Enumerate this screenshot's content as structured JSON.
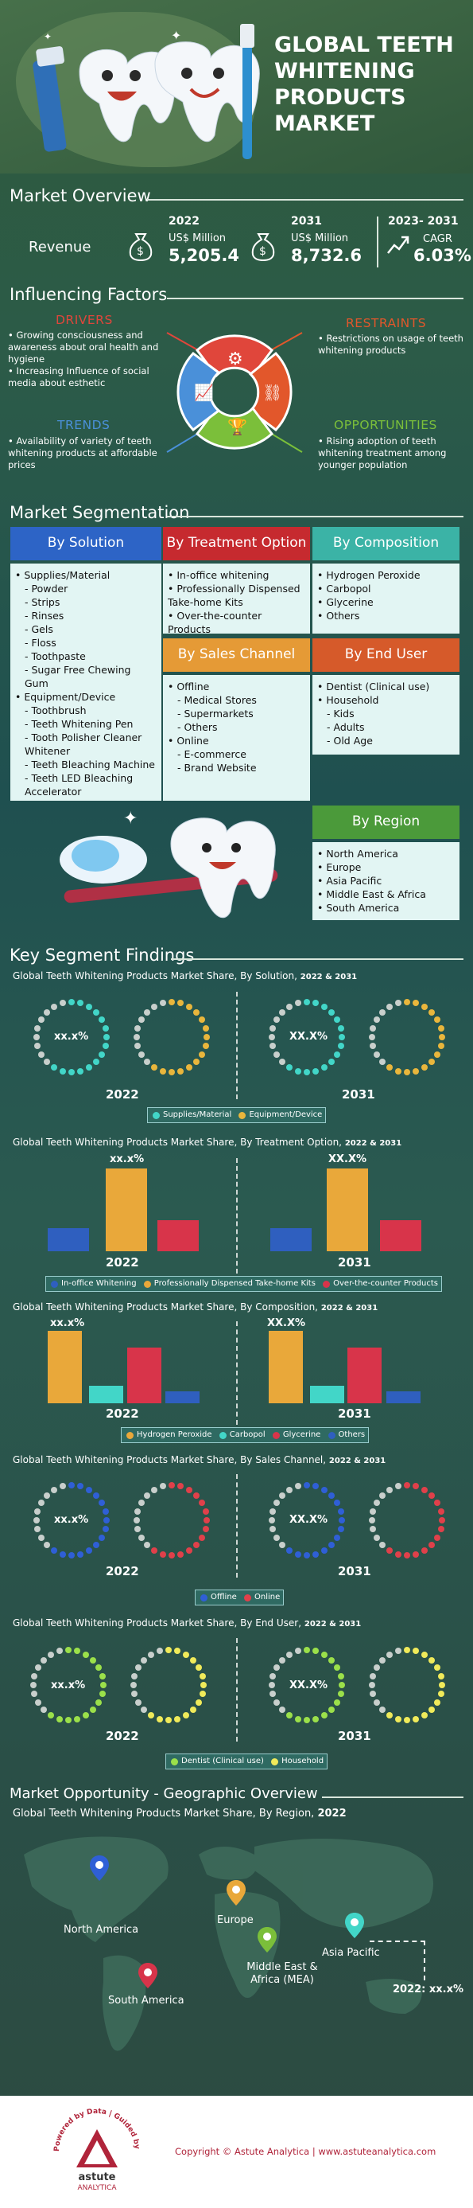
{
  "header": {
    "title": [
      "GLOBAL TEETH",
      "WHITENING",
      "PRODUCTS",
      "MARKET"
    ]
  },
  "overview": {
    "title": "Market Overview",
    "revenue_label": "Revenue",
    "y2022": {
      "year": "2022",
      "unit": "US$ Million",
      "value": "5,205.4"
    },
    "y2031": {
      "year": "2031",
      "unit": "US$ Million",
      "value": "8,732.6"
    },
    "cagr": {
      "years": "2023- 2031",
      "label": "CAGR",
      "value": "6.03%"
    }
  },
  "factors": {
    "title": "Influencing Factors",
    "drivers": {
      "title": "DRIVERS",
      "items": [
        "Growing consciousness and awareness about oral health and hygiene",
        "Increasing Influence of social media about esthetic"
      ]
    },
    "restraints": {
      "title": "RESTRAINTS",
      "items": [
        "Restrictions on usage of teeth whitening products"
      ]
    },
    "trends": {
      "title": "TRENDS",
      "text": "Availability of variety of teeth whitening products at affordable prices"
    },
    "opportunities": {
      "title": "OPPORTUNITIES",
      "text": "Rising adoption of teeth whitening treatment among younger population"
    },
    "colors": {
      "drivers": "#e0463b",
      "restraints": "#e2572b",
      "trends": "#4a90d9",
      "opportunities": "#7bbf3a"
    }
  },
  "segmentation": {
    "title": "Market Segmentation",
    "solution": {
      "title": "By Solution",
      "items": [
        {
          "t": "Supplies/Material",
          "lvl": 0
        },
        {
          "t": "Powder",
          "lvl": 1
        },
        {
          "t": "Strips",
          "lvl": 1
        },
        {
          "t": "Rinses",
          "lvl": 1
        },
        {
          "t": "Gels",
          "lvl": 1
        },
        {
          "t": "Floss",
          "lvl": 1
        },
        {
          "t": "Toothpaste",
          "lvl": 1
        },
        {
          "t": "Sugar Free Chewing Gum",
          "lvl": 1
        },
        {
          "t": "Equipment/Device",
          "lvl": 0
        },
        {
          "t": "Toothbrush",
          "lvl": 1
        },
        {
          "t": "Teeth Whitening Pen",
          "lvl": 1
        },
        {
          "t": "Tooth Polisher Cleaner Whitener",
          "lvl": 1
        },
        {
          "t": "Teeth Bleaching Machine",
          "lvl": 1
        },
        {
          "t": "Teeth LED Bleaching Accelerator",
          "lvl": 1
        }
      ]
    },
    "treatment": {
      "title": "By Treatment Option",
      "items": [
        "In-office whitening",
        "Professionally Dispensed Take-home Kits",
        "Over-the-counter Products"
      ]
    },
    "composition": {
      "title": "By Composition",
      "items": [
        "Hydrogen Peroxide",
        "Carbopol",
        "Glycerine",
        "Others"
      ]
    },
    "sales": {
      "title": "By Sales Channel",
      "items": [
        {
          "t": "Offline",
          "lvl": 0
        },
        {
          "t": "Medical Stores",
          "lvl": 1
        },
        {
          "t": "Supermarkets",
          "lvl": 1
        },
        {
          "t": "Others",
          "lvl": 1
        },
        {
          "t": "Online",
          "lvl": 0
        },
        {
          "t": "E-commerce",
          "lvl": 1
        },
        {
          "t": "Brand Website",
          "lvl": 1
        }
      ]
    },
    "enduser": {
      "title": "By End User",
      "items": [
        {
          "t": "Dentist (Clinical use)",
          "lvl": 0
        },
        {
          "t": "Household",
          "lvl": 0
        },
        {
          "t": "Kids",
          "lvl": 1
        },
        {
          "t": "Adults",
          "lvl": 1
        },
        {
          "t": "Old Age",
          "lvl": 1
        }
      ]
    },
    "region": {
      "title": "By Region",
      "items": [
        "North America",
        "Europe",
        "Asia Pacific",
        "Middle East & Africa",
        "South America"
      ]
    }
  },
  "findings": {
    "title": "Key Segment Findings",
    "solution": {
      "title": "Global Teeth Whitening Products Market Share, By Solution,",
      "years": "2022 & 2031",
      "label_a": "xx.x%",
      "label_b": "XX.X%",
      "year_a": "2022",
      "year_b": "2031",
      "legend": [
        "Supplies/Material",
        "Equipment/Device"
      ],
      "colors": [
        "#42d6c8",
        "#e9b63c"
      ]
    },
    "treatment": {
      "title": "Global Teeth Whitening Products Market Share, By Treatment Option,",
      "years": "2022 & 2031",
      "label_a": "xx.x%",
      "label_b": "XX.X%",
      "year_a": "2022",
      "year_b": "2031",
      "legend": [
        "In-office Whitening",
        "Professionally Dispensed Take-home Kits",
        "Over-the-counter Products"
      ],
      "colors": [
        "#2f5fbf",
        "#e9a83a",
        "#d8344a"
      ]
    },
    "composition": {
      "title": "Global Teeth Whitening Products Market Share, By Composition,",
      "years": "2022 & 2031",
      "label_a": "xx.x%",
      "label_b": "XX.X%",
      "year_a": "2022",
      "year_b": "2031",
      "legend": [
        "Hydrogen Peroxide",
        "Carbopol",
        "Glycerine",
        "Others"
      ],
      "colors": [
        "#e9a83a",
        "#42d6c8",
        "#d8344a",
        "#2f5fbf"
      ]
    },
    "sales": {
      "title": "Global Teeth Whitening Products Market Share, By Sales Channel,",
      "years": "2022 & 2031",
      "label_a": "xx.x%",
      "label_b": "XX.X%",
      "year_a": "2022",
      "year_b": "2031",
      "legend": [
        "Offline",
        "Online"
      ],
      "colors": [
        "#2f5fd6",
        "#e0404a"
      ]
    },
    "enduser": {
      "title": "Global Teeth Whitening Products Market Share, By End User,",
      "years": "2022 & 2031",
      "label_a": "xx.x%",
      "label_b": "XX.X%",
      "year_a": "2022",
      "year_b": "2031",
      "legend": [
        "Dentist (Clinical use)",
        "Household"
      ],
      "colors": [
        "#9be04a",
        "#f0ea5a"
      ]
    }
  },
  "geo": {
    "title": "Market Opportunity - Geographic Overview",
    "subtitle": "Global Teeth Whitening Products Market Share, By Region,",
    "year": "2022",
    "regions": [
      "North America",
      "Europe",
      "Asia Pacific",
      "Middle East & Africa (MEA)",
      "South America"
    ],
    "callout": "2022: xx.x%"
  },
  "footer": {
    "copyright": "Copyright © Astute Analytica  |  www.astuteanalytica.com",
    "logo_ring": "Powered by Data | Guided by Intelligence",
    "logo_name": "astute",
    "logo_sub": "ANALYTICA"
  }
}
